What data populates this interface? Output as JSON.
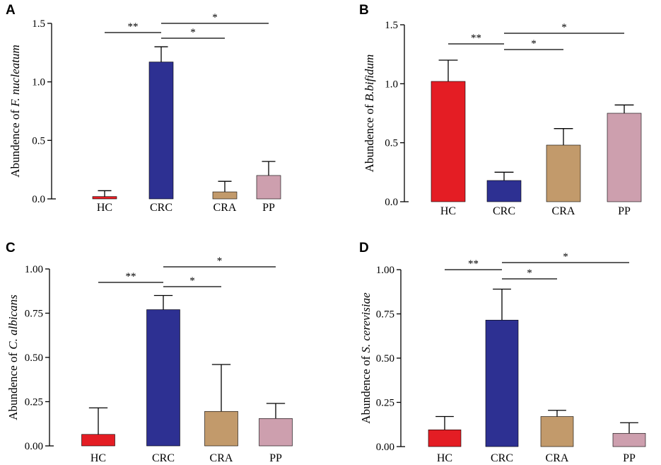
{
  "chart_data": [
    {
      "type": "bar",
      "panel": "A",
      "ylabel_prefix": "Abundence of ",
      "ylabel_species": "F. nucleatum",
      "categories": [
        "HC",
        "CRC",
        "CRA",
        "PP"
      ],
      "values": [
        0.02,
        1.17,
        0.06,
        0.2
      ],
      "errors": [
        0.05,
        0.13,
        0.09,
        0.12
      ],
      "colors": [
        "#e41d24",
        "#2d3092",
        "#c29a6b",
        "#cd9fae"
      ],
      "ylim": [
        0,
        1.5
      ],
      "yticks": [
        "0.0",
        "0.5",
        "1.0",
        "1.5"
      ],
      "significance": [
        {
          "from": "HC",
          "to": "CRC",
          "label": "**"
        },
        {
          "from": "CRC",
          "to": "CRA",
          "label": "*"
        },
        {
          "from": "CRC",
          "to": "PP",
          "label": "*"
        }
      ]
    },
    {
      "type": "bar",
      "panel": "B",
      "ylabel_prefix": "Abundence of ",
      "ylabel_species": "B.bifidum",
      "categories": [
        "HC",
        "CRC",
        "CRA",
        "PP"
      ],
      "values": [
        1.02,
        0.18,
        0.48,
        0.75
      ],
      "errors": [
        0.18,
        0.07,
        0.14,
        0.07
      ],
      "colors": [
        "#e41d24",
        "#2d3092",
        "#c29a6b",
        "#cd9fae"
      ],
      "ylim": [
        0,
        1.5
      ],
      "yticks": [
        "0.0",
        "0.5",
        "1.0",
        "1.5"
      ],
      "significance": [
        {
          "from": "HC",
          "to": "CRC",
          "label": "**"
        },
        {
          "from": "CRC",
          "to": "CRA",
          "label": "*"
        },
        {
          "from": "CRC",
          "to": "PP",
          "label": "*"
        }
      ]
    },
    {
      "type": "bar",
      "panel": "C",
      "ylabel_prefix": "Abundence of ",
      "ylabel_species": "C. albicans",
      "categories": [
        "HC",
        "CRC",
        "CRA",
        "PP"
      ],
      "values": [
        0.065,
        0.77,
        0.195,
        0.155
      ],
      "errors": [
        0.15,
        0.08,
        0.265,
        0.085
      ],
      "colors": [
        "#e41d24",
        "#2d3092",
        "#c29a6b",
        "#cd9fae"
      ],
      "ylim": [
        0,
        1.0
      ],
      "yticks": [
        "0.00",
        "0.25",
        "0.50",
        "0.75",
        "1.00"
      ],
      "significance": [
        {
          "from": "HC",
          "to": "CRC",
          "label": "**"
        },
        {
          "from": "CRC",
          "to": "CRA",
          "label": "*"
        },
        {
          "from": "CRC",
          "to": "PP",
          "label": "*"
        }
      ]
    },
    {
      "type": "bar",
      "panel": "D",
      "ylabel_prefix": "Abundence of ",
      "ylabel_species": "S. cerevisiae",
      "categories": [
        "HC",
        "CRC",
        "CRA",
        "PP"
      ],
      "values": [
        0.095,
        0.715,
        0.17,
        0.075
      ],
      "errors": [
        0.075,
        0.175,
        0.035,
        0.06
      ],
      "colors": [
        "#e41d24",
        "#2d3092",
        "#c29a6b",
        "#cd9fae"
      ],
      "ylim": [
        0,
        1.0
      ],
      "yticks": [
        "0.00",
        "0.25",
        "0.50",
        "0.75",
        "1.00"
      ],
      "significance": [
        {
          "from": "HC",
          "to": "CRC",
          "label": "**"
        },
        {
          "from": "CRC",
          "to": "CRA",
          "label": "*"
        },
        {
          "from": "CRC",
          "to": "PP",
          "label": "*"
        }
      ]
    }
  ]
}
